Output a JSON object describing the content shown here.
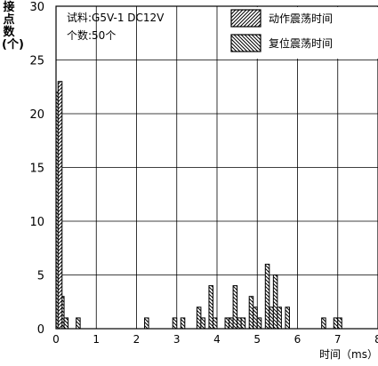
{
  "chart_data": {
    "type": "bar",
    "ylabel": "接点数(个)",
    "xlabel": "时间（ms）",
    "xlim": [
      0,
      8
    ],
    "ylim": [
      0,
      30
    ],
    "x_ticks": [
      "0",
      "1",
      "2",
      "3",
      "4",
      "5",
      "6",
      "7",
      "8"
    ],
    "y_ticks": [
      "0",
      "5",
      "10",
      "15",
      "20",
      "25",
      "30"
    ],
    "bin_width": 0.1,
    "grid": true,
    "legend_position": "top-right",
    "annotation": [
      "试料:G5V-1  DC12V",
      "个数:50个"
    ],
    "series": [
      {
        "name": "动作震荡时间",
        "pattern": "forward-hatch",
        "bars": [
          {
            "x": 0.05,
            "value": 23
          }
        ]
      },
      {
        "name": "复位震荡时间",
        "pattern": "back-hatch",
        "bars": [
          {
            "x": 0.0,
            "value": 22
          },
          {
            "x": 0.1,
            "value": 3
          },
          {
            "x": 0.2,
            "value": 1
          },
          {
            "x": 0.5,
            "value": 1
          },
          {
            "x": 2.2,
            "value": 1
          },
          {
            "x": 2.9,
            "value": 1
          },
          {
            "x": 3.1,
            "value": 1
          },
          {
            "x": 3.5,
            "value": 2
          },
          {
            "x": 3.6,
            "value": 1
          },
          {
            "x": 3.8,
            "value": 4
          },
          {
            "x": 3.9,
            "value": 1
          },
          {
            "x": 4.2,
            "value": 1
          },
          {
            "x": 4.3,
            "value": 1
          },
          {
            "x": 4.4,
            "value": 4
          },
          {
            "x": 4.5,
            "value": 1
          },
          {
            "x": 4.6,
            "value": 1
          },
          {
            "x": 4.8,
            "value": 3
          },
          {
            "x": 4.9,
            "value": 2
          },
          {
            "x": 5.0,
            "value": 1
          },
          {
            "x": 5.2,
            "value": 6
          },
          {
            "x": 5.3,
            "value": 2
          },
          {
            "x": 5.4,
            "value": 5
          },
          {
            "x": 5.5,
            "value": 2
          },
          {
            "x": 5.7,
            "value": 2
          },
          {
            "x": 6.6,
            "value": 1
          },
          {
            "x": 6.9,
            "value": 1
          },
          {
            "x": 7.0,
            "value": 1
          }
        ]
      }
    ]
  }
}
